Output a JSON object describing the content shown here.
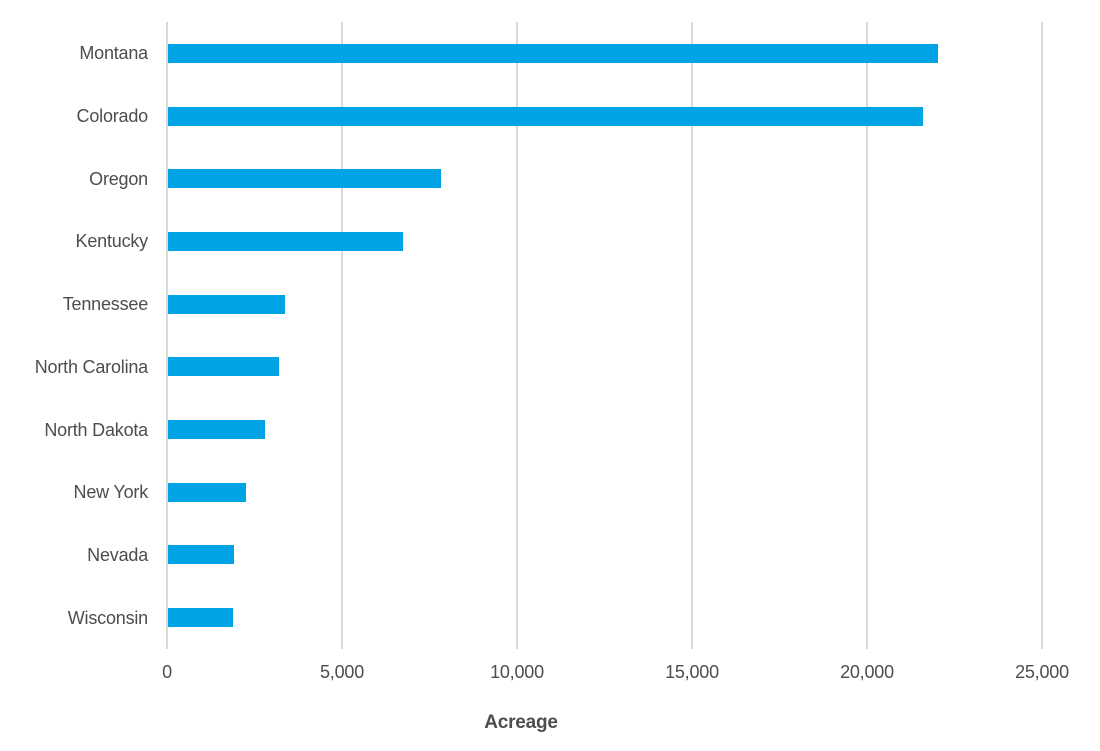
{
  "chart_data": {
    "type": "bar",
    "orientation": "horizontal",
    "title": "",
    "xlabel": "Acreage",
    "ylabel": "",
    "categories": [
      "Montana",
      "Colorado",
      "Oregon",
      "Kentucky",
      "Tennessee",
      "North Carolina",
      "North Dakota",
      "New York",
      "Nevada",
      "Wisconsin"
    ],
    "values": [
      22000,
      21578,
      7808,
      6700,
      3338,
      3184,
      2778,
      2240,
      1881,
      1850
    ],
    "xlim": [
      0,
      25000
    ],
    "xticks": [
      0,
      5000,
      10000,
      15000,
      20000,
      25000
    ],
    "xtick_labels": [
      "0",
      "5,000",
      "10,000",
      "15,000",
      "20,000",
      "25,000"
    ],
    "grid": "vertical-only",
    "legend": "none",
    "colors": {
      "bar": "#00a4e4",
      "gridline": "#d9d9d9",
      "label_text": "#4d4d4d",
      "background": "#ffffff"
    }
  }
}
